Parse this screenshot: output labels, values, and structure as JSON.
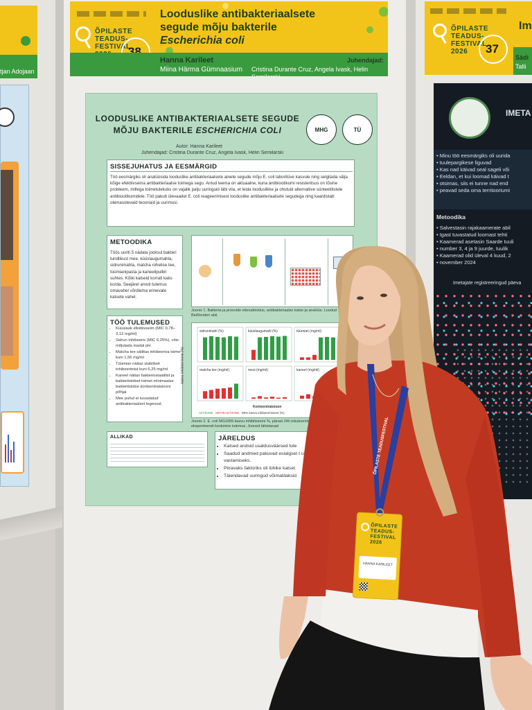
{
  "colors": {
    "banner_yellow": "#f2c41a",
    "banner_green": "#3a9a3e",
    "poster_green": "#b8dcc3",
    "sweater_red": "#c33a23",
    "lanyard_blue": "#2a3f9e"
  },
  "left_banner": {
    "name_fragment": "tjan Adojaan"
  },
  "center_banner": {
    "festival_label": "ÕPILASTE TEADUS- FESTIVAL 2026",
    "number": "38",
    "title_line1": "Looduslike antibakteriaalsete",
    "title_line2": "segude mõju bakterile",
    "title_line3": "Escherichia coli",
    "supervisors_label": "Juhendajad:",
    "student_name": "Hanna Karileet",
    "school": "Miina Härma Gümnaasium",
    "supervisors": "Cristina Durante Cruz, Angela Ivask, Helin Semilarski"
  },
  "right_banner": {
    "festival_label": "ÕPILASTE TEADUS- FESTIVAL 2026",
    "number": "37",
    "title_fragment": "Im",
    "line_fragment1": "Sädi",
    "line_fragment2": "Talli"
  },
  "poster": {
    "title_line1": "LOODUSLIKE ANTIBAKTERIAALSETE SEGUDE",
    "title_line2_a": "MÕJU BAKTERILE ",
    "title_line2_b": "ESCHERICHIA COLI",
    "author": "Autor: Hanna Karileet",
    "supervisors": "Juhendajad: Cristina Durante Cruz, Angela Ivask, Helin Semilarski",
    "intro_heading": "SISSEJUHATUS JA EESMÄRGID",
    "intro_text": "Töö eesmärgiks oli analüüsida looduslike antibakteriaalsete ainete segude mõju E. coli laboritüve kasvule ning selgitada välja kõige efektiivsema antibakteriaalse toimega segu. Antud teema on aktuaalne, kuna antibiootikumi resistentsus on tõsine probleem, millega toimetulekuks on vajalik palju uuringuid läbi viia, et leida looduslikke ja ohutuid alternatiive sünteetilistele antibiootikumidele. Töö pakub ülevaadet E. coli reageerimisest looduslike antibakteriaalsete segudega ning kaardistab olemasolevaid teooriaid ja uurimusi.",
    "method_heading": "METOODIKA",
    "method_text": "Töös uuriti 5 nädala jooksul bakteri tundlikust mee, küüslaugumahla, sidrunimahla, matcha rohelise tee, tüümianipasta ja kaneelipulbri suhtes. Kõiki katseid korrati kaks korda. Seejärel arvuti tulemus omavahel võrdlema erinevate katsete vahel.",
    "figure1_caption": "Joonis 1. Bakteria ja proovide ettevalmistus, antibakteriaalse katse ja analüüs. Loodud BioRenderi abil.",
    "results_heading": "TÖÖ TULEMUSED",
    "results_items": [
      "Küüslauk efektiivseim (MIC 0,78–3,13 mg/ml)",
      "Sidrun inhibeeris (MIC 6,25%), võis mõjutada madal pH",
      "Matcha tee säilitas inhibeeriva toime kuni 1,56 mg/ml",
      "Tüümian näitas stabiilset inhibeerimist kuni 6,25 mg/ml",
      "Kaneel näitas bakteriostaatilist ja bakteritsiidset toimet minimaalse bakteritsiidse kontsentratsiooni põhjal",
      "Mee puhul ei tuvastatud antibakteriaalset tegevust."
    ],
    "chart_panels": [
      "sidrunimahl (%)",
      "küüslaugumahl (%)",
      "tüümian (mg/ml)",
      "matcha tee (mg/ml)",
      "mesi (mg/ml)",
      "kaneel (mg/ml)"
    ],
    "chart_ylabel": "kasvu inhibeerimine (%)",
    "chart_xlabel": "Kontsentratsioon",
    "chart_legend": [
      "AKTIIVNE",
      "MITTEAKTIIVNE",
      "90% kasvu inhibeerimisest (%)"
    ],
    "figure2_caption": "Joonis 2. E. coli MG1655 kasvu inhibitsiooni %, pärast 24h inkubeerimist tulbad on kahe eksperimendi keskmine tulemus. Jooned tähistavad",
    "refs_heading": "ALLIKAD",
    "conclusion_heading": "JÄRELDUS",
    "conclusion_items": [
      "Katsed andsid usaldusväärsed tule",
      "Saadud andmed pakuvad esialgset t uurimissuunustele vastamiseks.",
      "Piiravaks faktoriks oli lühike katset",
      "Täiendavad uuringud võimaldaksid"
    ]
  },
  "dark_poster": {
    "title_fragment": "IMETA",
    "intro_lines": [
      "Minu töö eesmärgiks oli uurida",
      "tuulepargikese liguvad",
      "Kas nad käivad seal sageli või",
      "Eeldan, et kui loomad käivad t",
      "otsimas, siis ei tunne nad end",
      "peavad seda oma territooriumi"
    ],
    "method_heading": "Metoodika",
    "method_lines": [
      "Salvestasin rajakaamerate abil",
      "Igast tuvastatud loomast tehti",
      "Kaamerad asetasin Saarde tuuli",
      "number 3, 4 ja 9 juurde, tuulik",
      "Kaamerad olid üleval 4 kuud, 2",
      "november 2024"
    ],
    "chart_title": "Imetajate registreeringud päeva"
  },
  "name_badge": {
    "festival_label": "ÕPILASTE TEADUS- FESTIVAL 2026",
    "name": "HANNA KARILEET"
  },
  "lanyard_text": "ÕPILASTE TEADUSFESTIVAL"
}
